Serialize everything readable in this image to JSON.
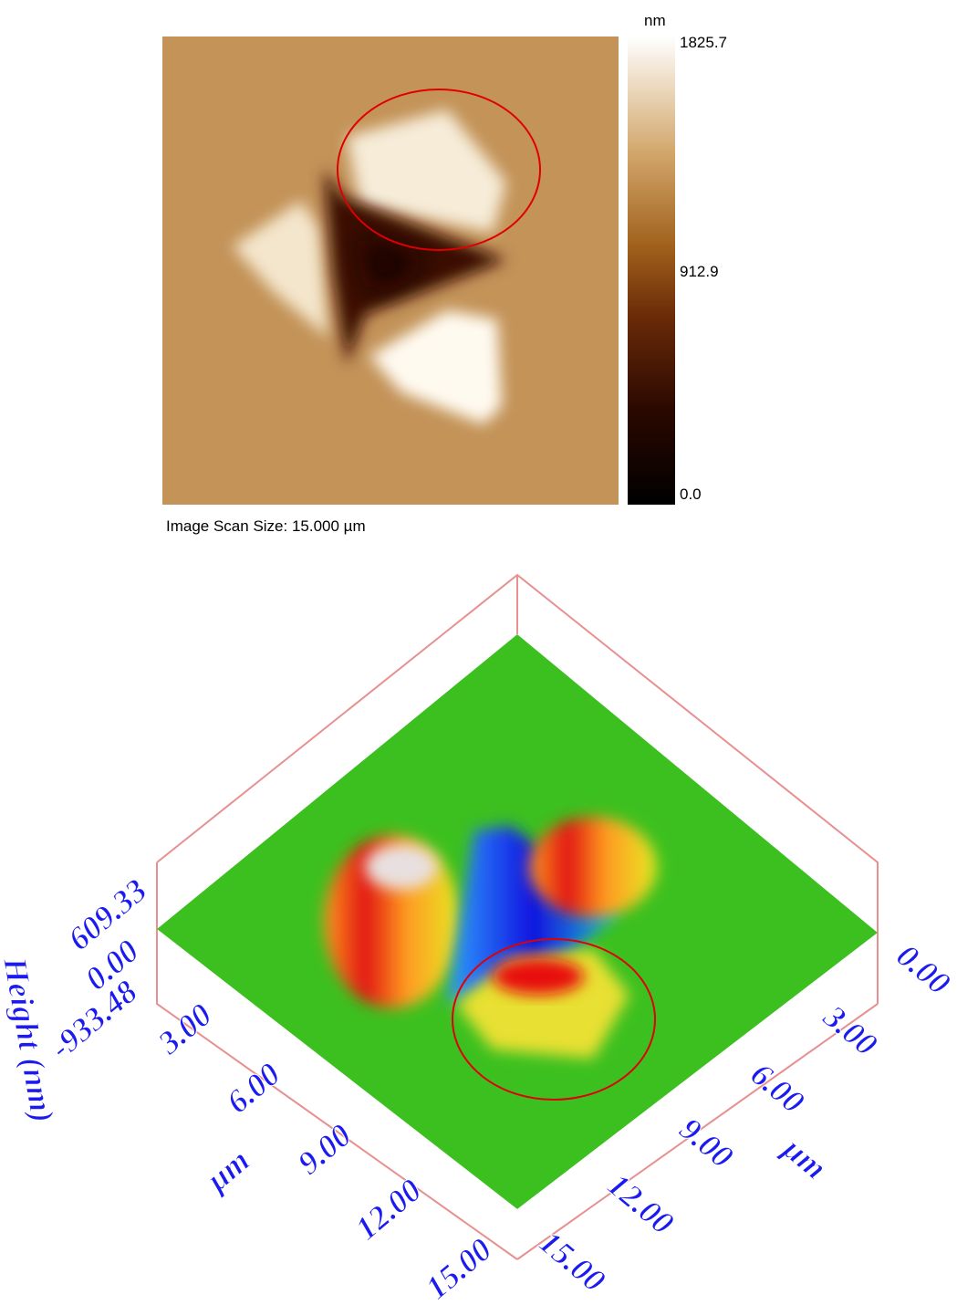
{
  "afm_image": {
    "colorbar": {
      "unit": "nm",
      "labels": [
        "1825.7",
        "912.9",
        "0.0"
      ]
    },
    "caption": "Image Scan Size:  15.000 µm"
  },
  "surface_3d": {
    "z_axis": {
      "title": "Height (nm)",
      "labels": [
        "609.33",
        "0.00",
        "-933.48"
      ]
    },
    "left_axis": {
      "title": "µm",
      "labels": [
        "3.00",
        "6.00",
        "9.00",
        "12.00",
        "15.00"
      ]
    },
    "right_axis": {
      "title": "µm",
      "labels": [
        "0.00",
        "3.00",
        "6.00",
        "9.00",
        "12.00",
        "15.00"
      ]
    }
  }
}
